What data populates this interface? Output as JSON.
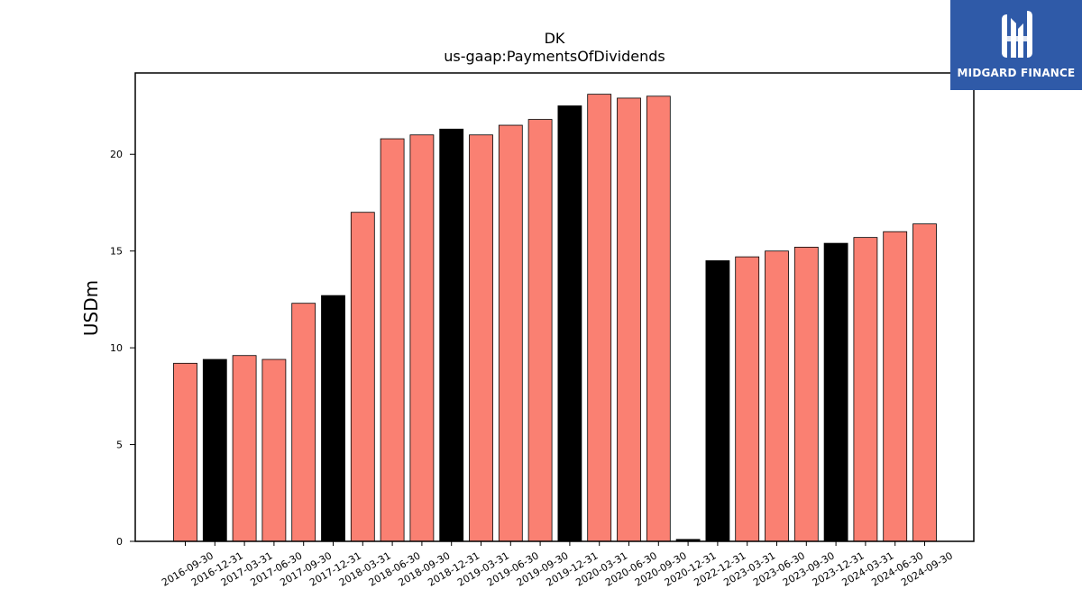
{
  "logo": {
    "text": "MIDGARD FINANCE",
    "icon": "midgard-logo-icon"
  },
  "colors": {
    "regular": "#fa8072",
    "annual": "#000000",
    "logo_bg": "#2f5aa8"
  },
  "chart_data": {
    "type": "bar",
    "title": "DK",
    "subtitle": "us-gaap:PaymentsOfDividends",
    "xlabel": "",
    "ylabel": "USDm",
    "ylim": [
      0,
      24.2
    ],
    "yticks": [
      0,
      5,
      10,
      15,
      20
    ],
    "categories": [
      "2016-09-30",
      "2016-12-31",
      "2017-03-31",
      "2017-06-30",
      "2017-09-30",
      "2017-12-31",
      "2018-03-31",
      "2018-06-30",
      "2018-09-30",
      "2018-12-31",
      "2019-03-31",
      "2019-06-30",
      "2019-09-30",
      "2019-12-31",
      "2020-03-31",
      "2020-06-30",
      "2020-09-30",
      "2020-12-31",
      "2022-12-31",
      "2023-03-31",
      "2023-06-30",
      "2023-09-30",
      "2023-12-31",
      "2024-03-31",
      "2024-06-30",
      "2024-09-30"
    ],
    "values": [
      9.2,
      9.4,
      9.6,
      9.4,
      12.3,
      12.7,
      17.0,
      20.8,
      21.0,
      21.3,
      21.0,
      21.5,
      21.8,
      22.5,
      23.1,
      22.9,
      23.0,
      0.1,
      14.5,
      14.7,
      15.0,
      15.2,
      15.4,
      15.7,
      16.0,
      16.4
    ],
    "annual": [
      false,
      true,
      false,
      false,
      false,
      true,
      false,
      false,
      false,
      true,
      false,
      false,
      false,
      true,
      false,
      false,
      false,
      true,
      true,
      false,
      false,
      false,
      true,
      false,
      false,
      false
    ],
    "grid": false,
    "legend": "none"
  }
}
